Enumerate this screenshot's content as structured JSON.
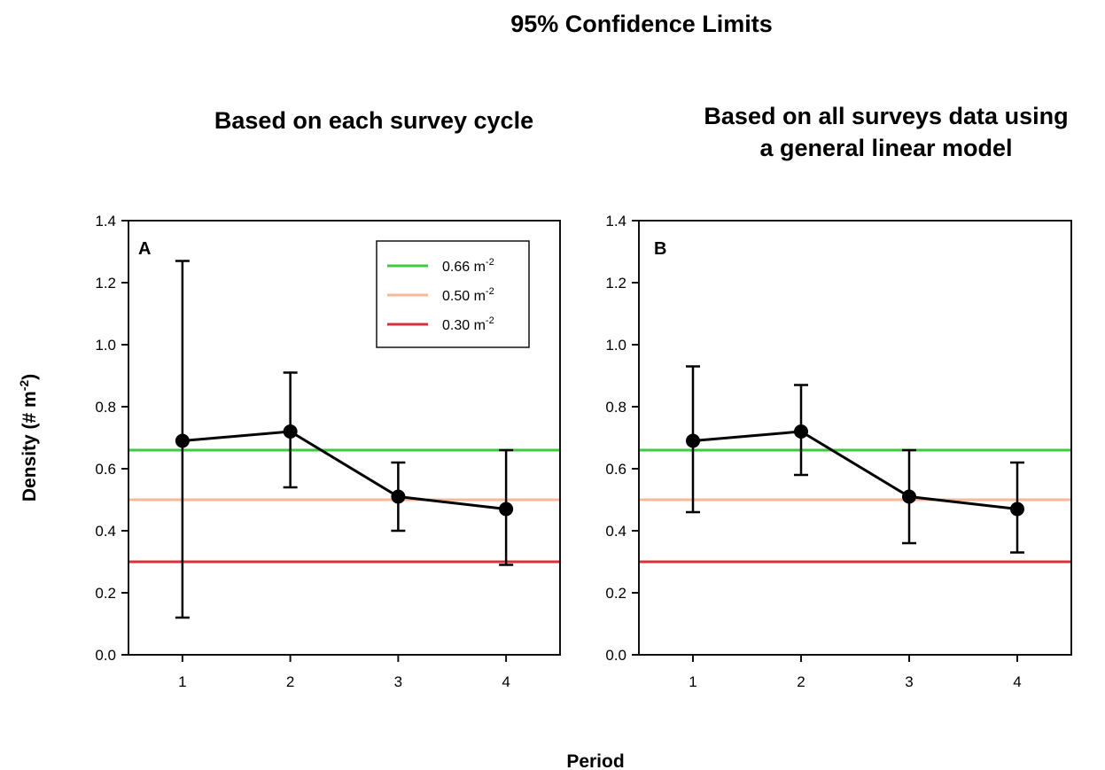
{
  "title": "95% Confidence Limits",
  "panels": [
    {
      "title_lines": [
        "Based on each survey cycle"
      ],
      "letter": "A"
    },
    {
      "title_lines": [
        "Based on all surveys data using",
        "a general linear model"
      ],
      "letter": "B"
    }
  ],
  "y_axis_label": {
    "base": "Density (# m",
    "sup": "-2",
    "close": ")"
  },
  "x_axis_label": "Period",
  "legend": [
    {
      "base": "0.66 m",
      "sup": "-2",
      "color": "#3fc93f"
    },
    {
      "base": "0.50 m",
      "sup": "-2",
      "color": "#f8b79a"
    },
    {
      "base": "0.30 m",
      "sup": "-2",
      "color": "#d8303a"
    }
  ],
  "chart_data": [
    {
      "type": "line",
      "panel": "A",
      "title": "Based on each survey cycle",
      "xlabel": "Period",
      "ylabel": "Density (# m-2)",
      "x": [
        1,
        2,
        3,
        4
      ],
      "series": [
        {
          "values": [
            0.69,
            0.72,
            0.51,
            0.47
          ],
          "ci_upper": [
            1.27,
            0.91,
            0.62,
            0.66
          ],
          "ci_lower": [
            0.12,
            0.54,
            0.4,
            0.29
          ],
          "color": "#000000"
        }
      ],
      "reference_lines": [
        {
          "label": "0.66 m-2",
          "y": 0.66,
          "color": "#3fc93f"
        },
        {
          "label": "0.50 m-2",
          "y": 0.5,
          "color": "#f8b79a"
        },
        {
          "label": "0.30 m-2",
          "y": 0.3,
          "color": "#d8303a"
        }
      ],
      "xlim": [
        0.5,
        4.5
      ],
      "ylim": [
        0,
        1.4
      ],
      "xticks": [
        "1",
        "2",
        "3",
        "4"
      ],
      "yticks": [
        "0.0",
        "0.2",
        "0.4",
        "0.6",
        "0.8",
        "1.0",
        "1.2",
        "1.4"
      ],
      "legend_position": "top-right",
      "grid": false
    },
    {
      "type": "line",
      "panel": "B",
      "title": "Based on all surveys data using a general linear model",
      "xlabel": "Period",
      "ylabel": "Density (# m-2)",
      "x": [
        1,
        2,
        3,
        4
      ],
      "series": [
        {
          "values": [
            0.69,
            0.72,
            0.51,
            0.47
          ],
          "ci_upper": [
            0.93,
            0.87,
            0.66,
            0.62
          ],
          "ci_lower": [
            0.46,
            0.58,
            0.36,
            0.33
          ],
          "color": "#000000"
        }
      ],
      "reference_lines": [
        {
          "label": "0.66 m-2",
          "y": 0.66,
          "color": "#3fc93f"
        },
        {
          "label": "0.50 m-2",
          "y": 0.5,
          "color": "#f8b79a"
        },
        {
          "label": "0.30 m-2",
          "y": 0.3,
          "color": "#d8303a"
        }
      ],
      "xlim": [
        0.5,
        4.5
      ],
      "ylim": [
        0,
        1.4
      ],
      "xticks": [
        "1",
        "2",
        "3",
        "4"
      ],
      "yticks": [
        "0.0",
        "0.2",
        "0.4",
        "0.6",
        "0.8",
        "1.0",
        "1.2",
        "1.4"
      ],
      "legend_position": "none",
      "grid": false
    }
  ]
}
